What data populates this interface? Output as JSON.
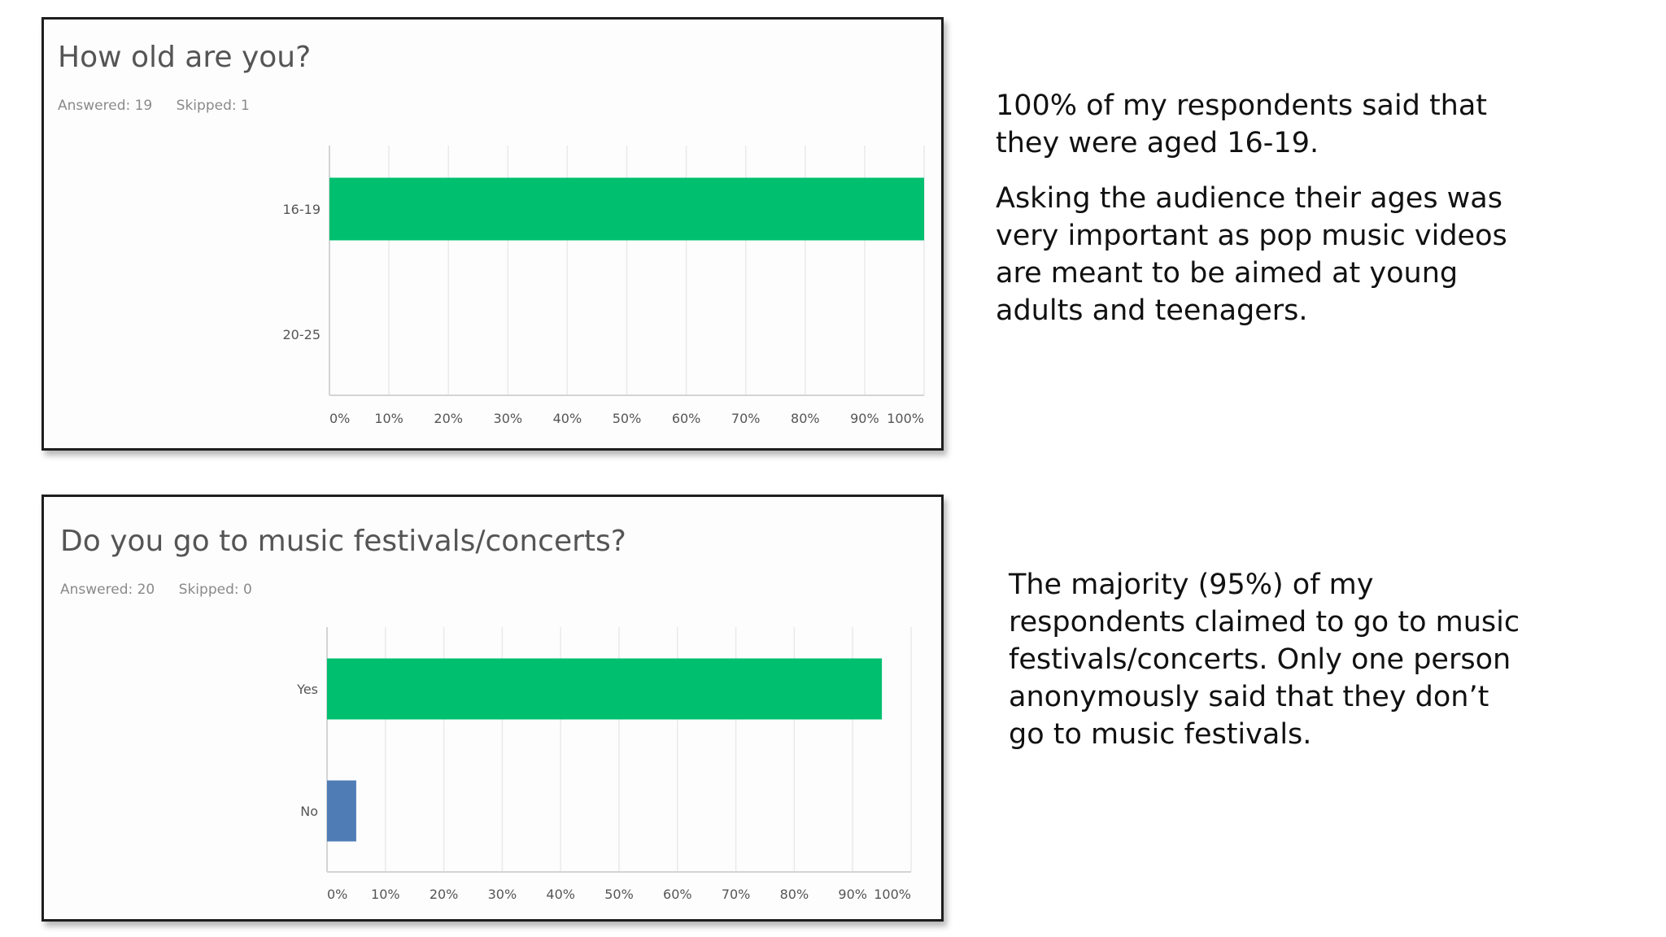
{
  "survey": [
    {
      "question": "How old are you?",
      "answered_label": "Answered: 19",
      "skipped_label": "Skipped: 1"
    },
    {
      "question": "Do you go to music festivals/concerts?",
      "answered_label": "Answered: 20",
      "skipped_label": "Skipped: 0"
    }
  ],
  "chart_data": [
    {
      "type": "bar",
      "orientation": "horizontal",
      "title": "How old are you?",
      "categories": [
        "16-19",
        "20-25"
      ],
      "values": [
        100,
        0
      ],
      "bar_colors": [
        "#00bf6f",
        "#00bf6f"
      ],
      "xlim": [
        0,
        100
      ],
      "x_ticks": [
        "0%",
        "10%",
        "20%",
        "30%",
        "40%",
        "50%",
        "60%",
        "70%",
        "80%",
        "90%",
        "100%"
      ],
      "grid": true
    },
    {
      "type": "bar",
      "orientation": "horizontal",
      "title": "Do you go to music festivals/concerts?",
      "categories": [
        "Yes",
        "No"
      ],
      "values": [
        95,
        5
      ],
      "bar_colors": [
        "#00bf6f",
        "#507cb6"
      ],
      "xlim": [
        0,
        100
      ],
      "x_ticks": [
        "0%",
        "10%",
        "20%",
        "30%",
        "40%",
        "50%",
        "60%",
        "70%",
        "80%",
        "90%",
        "100%"
      ],
      "grid": true
    }
  ],
  "notes": {
    "age": [
      "100% of my respondents said that they were aged 16-19.",
      "Asking the audience their ages was very important as pop music videos are meant to be aimed at young adults and teenagers."
    ],
    "festivals": [
      "The majority (95%) of my respondents claimed to go to music festivals/concerts. Only one person anonymously said that they don’t go to music festivals."
    ]
  }
}
